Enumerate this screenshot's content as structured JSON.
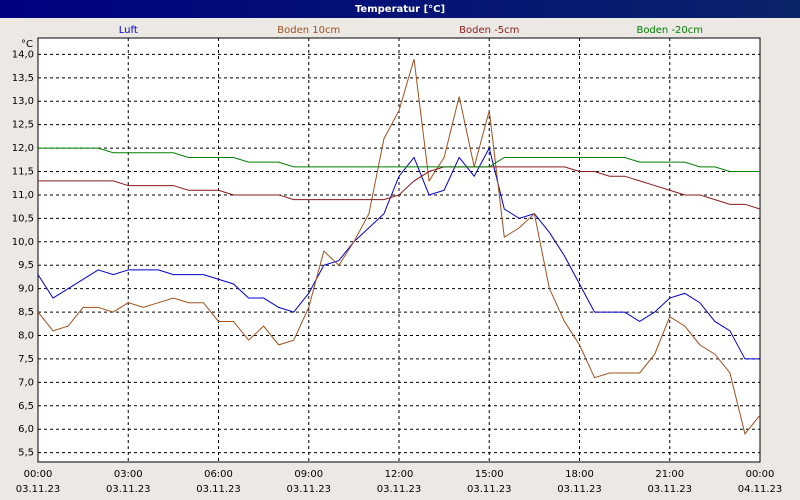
{
  "chart_data": {
    "type": "line",
    "title": "Temperatur [°C]",
    "y_unit": "°C",
    "x": [
      0,
      0.5,
      1,
      1.5,
      2,
      2.5,
      3,
      3.5,
      4,
      4.5,
      5,
      5.5,
      6,
      6.5,
      7,
      7.5,
      8,
      8.5,
      9,
      9.5,
      10,
      10.5,
      11,
      11.5,
      12,
      12.5,
      13,
      13.5,
      14,
      14.5,
      15,
      15.5,
      16,
      16.5,
      17,
      17.5,
      18,
      18.5,
      19,
      19.5,
      20,
      20.5,
      21,
      21.5,
      22,
      22.5,
      23,
      23.5,
      24
    ],
    "series": [
      {
        "name": "Luft",
        "color": "#0000cc",
        "values": [
          9.3,
          8.8,
          9.0,
          9.2,
          9.4,
          9.3,
          9.4,
          9.4,
          9.4,
          9.3,
          9.3,
          9.3,
          9.2,
          9.1,
          8.8,
          8.8,
          8.6,
          8.5,
          8.9,
          9.5,
          9.6,
          10.0,
          10.3,
          10.6,
          11.4,
          11.8,
          11.0,
          11.1,
          11.8,
          11.4,
          12.0,
          10.7,
          10.5,
          10.6,
          10.2,
          9.7,
          9.1,
          8.5,
          8.5,
          8.5,
          8.3,
          8.5,
          8.8,
          8.9,
          8.7,
          8.3,
          8.1,
          7.5,
          7.5
        ]
      },
      {
        "name": "Boden 10cm",
        "color": "#a0501e",
        "values": [
          8.5,
          8.1,
          8.2,
          8.6,
          8.6,
          8.5,
          8.7,
          8.6,
          8.7,
          8.8,
          8.7,
          8.7,
          8.3,
          8.3,
          7.9,
          8.2,
          7.8,
          7.9,
          8.6,
          9.8,
          9.5,
          10.0,
          10.6,
          12.2,
          12.8,
          13.9,
          11.3,
          11.8,
          13.1,
          11.6,
          12.8,
          10.1,
          10.3,
          10.6,
          9.0,
          8.3,
          7.8,
          7.1,
          7.2,
          7.2,
          7.2,
          7.6,
          8.4,
          8.2,
          7.8,
          7.6,
          7.2,
          5.9,
          6.3
        ]
      },
      {
        "name": "Boden -5cm",
        "color": "#8b1a1a",
        "values": [
          11.3,
          11.3,
          11.3,
          11.3,
          11.3,
          11.3,
          11.2,
          11.2,
          11.2,
          11.2,
          11.1,
          11.1,
          11.1,
          11.0,
          11.0,
          11.0,
          11.0,
          10.9,
          10.9,
          10.9,
          10.9,
          10.9,
          10.9,
          10.9,
          11.0,
          11.3,
          11.5,
          11.6,
          11.6,
          11.6,
          11.6,
          11.6,
          11.6,
          11.6,
          11.6,
          11.6,
          11.5,
          11.5,
          11.4,
          11.4,
          11.3,
          11.2,
          11.1,
          11.0,
          11.0,
          10.9,
          10.8,
          10.8,
          10.7
        ]
      },
      {
        "name": "Boden -20cm",
        "color": "#008000",
        "values": [
          12.0,
          12.0,
          12.0,
          12.0,
          12.0,
          11.9,
          11.9,
          11.9,
          11.9,
          11.9,
          11.8,
          11.8,
          11.8,
          11.8,
          11.7,
          11.7,
          11.7,
          11.6,
          11.6,
          11.6,
          11.6,
          11.6,
          11.6,
          11.6,
          11.6,
          11.6,
          11.6,
          11.6,
          11.6,
          11.6,
          11.6,
          11.8,
          11.8,
          11.8,
          11.8,
          11.8,
          11.8,
          11.8,
          11.8,
          11.8,
          11.7,
          11.7,
          11.7,
          11.7,
          11.6,
          11.6,
          11.5,
          11.5,
          11.5
        ]
      }
    ],
    "xlim": [
      0,
      24
    ],
    "xticks": [
      {
        "value": 0,
        "label": "00:00"
      },
      {
        "value": 3,
        "label": "03:00"
      },
      {
        "value": 6,
        "label": "06:00"
      },
      {
        "value": 9,
        "label": "09:00"
      },
      {
        "value": 12,
        "label": "12:00"
      },
      {
        "value": 15,
        "label": "15:00"
      },
      {
        "value": 18,
        "label": "18:00"
      },
      {
        "value": 21,
        "label": "21:00"
      },
      {
        "value": 24,
        "label": "00:00"
      }
    ],
    "xtick_dates": [
      "03.11.23",
      "03.11.23",
      "03.11.23",
      "03.11.23",
      "03.11.23",
      "03.11.23",
      "03.11.23",
      "03.11.23",
      "04.11.23"
    ],
    "ylim": [
      5.3,
      14.35
    ],
    "yticks": [
      {
        "value": 5.5,
        "label": "5,5"
      },
      {
        "value": 6.0,
        "label": "6,0"
      },
      {
        "value": 6.5,
        "label": "6,5"
      },
      {
        "value": 7.0,
        "label": "7,0"
      },
      {
        "value": 7.5,
        "label": "7,5"
      },
      {
        "value": 8.0,
        "label": "8,0"
      },
      {
        "value": 8.5,
        "label": "8,5"
      },
      {
        "value": 9.0,
        "label": "9,0"
      },
      {
        "value": 9.5,
        "label": "9,5"
      },
      {
        "value": 10.0,
        "label": "10,0"
      },
      {
        "value": 10.5,
        "label": "10,5"
      },
      {
        "value": 11.0,
        "label": "11,0"
      },
      {
        "value": 11.5,
        "label": "11,5"
      },
      {
        "value": 12.0,
        "label": "12,0"
      },
      {
        "value": 12.5,
        "label": "12,5"
      },
      {
        "value": 13.0,
        "label": "13,0"
      },
      {
        "value": 13.5,
        "label": "13,5"
      },
      {
        "value": 14.0,
        "label": "14,0"
      }
    ],
    "grid": true
  }
}
